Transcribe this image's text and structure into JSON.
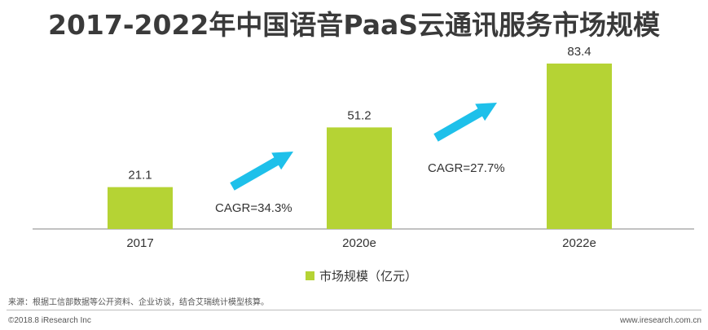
{
  "colors": {
    "bar": "#b5d334",
    "arrow": "#1ec0ea",
    "axis": "#9e9e9e",
    "text": "#333333"
  },
  "chart_data": {
    "type": "bar",
    "title": "2017-2022年中国语音PaaS云通讯服务市场规模",
    "categories": [
      "2017",
      "2020e",
      "2022e"
    ],
    "series": [
      {
        "name": "市场规模（亿元）",
        "values": [
          21.1,
          51.2,
          83.4
        ]
      }
    ],
    "xlabel": "",
    "ylabel": "",
    "grid": false,
    "legend_position": "bottom",
    "annotations": [
      {
        "text": "CAGR=34.3%",
        "between": [
          "2017",
          "2020e"
        ],
        "icon": "arrow-up-right-icon"
      },
      {
        "text": "CAGR=27.7%",
        "between": [
          "2020e",
          "2022e"
        ],
        "icon": "arrow-up-right-icon"
      }
    ]
  },
  "footer": {
    "source": "来源：根据工信部数据等公开资料、企业访谈，结合艾瑞统计模型核算。",
    "copyright": "©2018.8 iResearch Inc",
    "website": "www.iresearch.com.cn"
  }
}
